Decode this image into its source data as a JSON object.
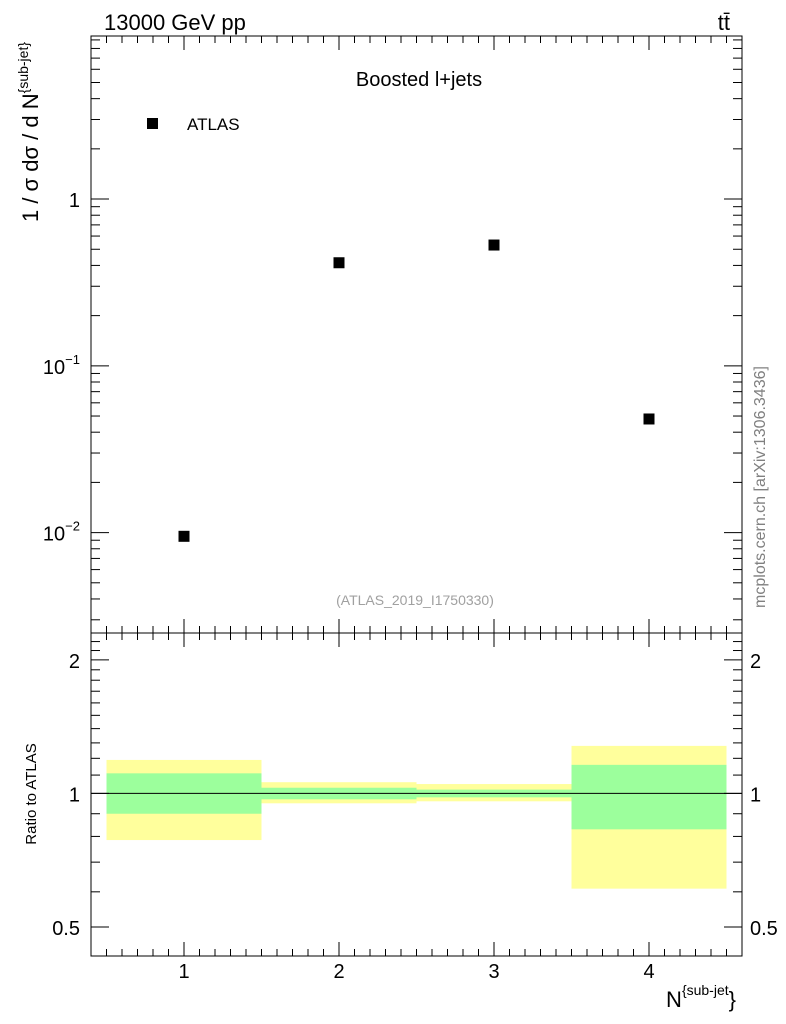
{
  "header": {
    "energy_label": "13000 GeV pp",
    "process_label": "tt̄"
  },
  "side_label": "mcplots.cern.ch [arXiv:1306.3436]",
  "analysis_id": "(ATLAS_2019_I1750330)",
  "chart_data": [
    {
      "type": "scatter",
      "title": "Boosted l+jets",
      "ylabel": "1 / σ dσ / d N",
      "ylabel_sup": "{sub-jet}",
      "yscale": "log",
      "ylim": [
        0.0025,
        9.5
      ],
      "xlim": [
        0.4,
        4.6
      ],
      "y_ticks": [
        {
          "value": 0.01,
          "base": "10",
          "exp": "−2"
        },
        {
          "value": 0.1,
          "base": "10",
          "exp": "−1"
        },
        {
          "value": 1,
          "base": "1",
          "exp": ""
        }
      ],
      "legend": {
        "placement": "top-left",
        "entries": [
          "ATLAS"
        ]
      },
      "series": [
        {
          "name": "ATLAS",
          "color": "#000000",
          "x": [
            1,
            2,
            3,
            4
          ],
          "y": [
            0.0095,
            0.415,
            0.53,
            0.048
          ]
        }
      ]
    },
    {
      "type": "area",
      "ylabel": "Ratio to ATLAS",
      "yscale": "log",
      "ylim": [
        0.43,
        2.3
      ],
      "xlim": [
        0.4,
        4.6
      ],
      "xlabel": "N",
      "xlabel_sup": "{sub-jet",
      "xlabel_suffix": "}",
      "x_ticks": [
        "1",
        "2",
        "3",
        "4"
      ],
      "y_ticks": [
        {
          "value": 0.5,
          "label": "0.5"
        },
        {
          "value": 1,
          "label": "1"
        },
        {
          "value": 2,
          "label": "2"
        }
      ],
      "reference_line": 1,
      "band_colors": {
        "inner": "#9cff9c",
        "outer": "#ffff9c"
      },
      "bins": [
        {
          "x_low": 0.5,
          "x_high": 1.5,
          "inner": [
            0.9,
            1.11
          ],
          "outer": [
            0.785,
            1.19
          ]
        },
        {
          "x_low": 1.5,
          "x_high": 2.5,
          "inner": [
            0.97,
            1.03
          ],
          "outer": [
            0.95,
            1.06
          ]
        },
        {
          "x_low": 2.5,
          "x_high": 3.5,
          "inner": [
            0.98,
            1.02
          ],
          "outer": [
            0.96,
            1.05
          ]
        },
        {
          "x_low": 3.5,
          "x_high": 4.5,
          "inner": [
            0.83,
            1.16
          ],
          "outer": [
            0.61,
            1.28
          ]
        }
      ]
    }
  ]
}
